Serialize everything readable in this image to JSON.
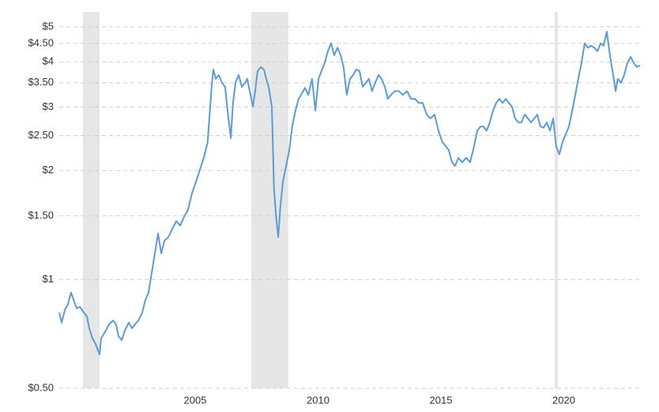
{
  "chart_data": {
    "type": "line",
    "log_scale": true,
    "grid": true,
    "color": "#5b9bd8",
    "shade_color": "#e6e6e6",
    "xlim": [
      1999.47,
      2023.2
    ],
    "ylim": [
      0.5,
      5.5
    ],
    "xticks": [
      2005,
      2010,
      2015,
      2020
    ],
    "yticks": [
      {
        "value": 0.5,
        "label": "$0.50"
      },
      {
        "value": 1,
        "label": "$1"
      },
      {
        "value": 1.5,
        "label": "$1.50"
      },
      {
        "value": 2,
        "label": "$2"
      },
      {
        "value": 2.5,
        "label": "$2.50"
      },
      {
        "value": 3,
        "label": "$3"
      },
      {
        "value": 3.5,
        "label": "$3.50"
      },
      {
        "value": 4,
        "label": "$4"
      },
      {
        "value": 4.5,
        "label": "$4.50"
      },
      {
        "value": 5,
        "label": "$5"
      }
    ],
    "shaded_ranges": [
      [
        2000.43,
        2001.11
      ],
      [
        2007.28,
        2008.79
      ],
      [
        2019.63,
        2019.76
      ]
    ],
    "x": [
      1999.47,
      1999.57,
      1999.7,
      1999.82,
      1999.95,
      2000.05,
      2000.18,
      2000.31,
      2000.47,
      2000.6,
      2000.69,
      2000.82,
      2000.95,
      2001.11,
      2001.17,
      2001.33,
      2001.5,
      2001.66,
      2001.78,
      2001.88,
      2002.01,
      2002.14,
      2002.3,
      2002.43,
      2002.56,
      2002.69,
      2002.85,
      2002.97,
      2003.1,
      2003.23,
      2003.36,
      2003.49,
      2003.62,
      2003.75,
      2003.91,
      2004.07,
      2004.23,
      2004.39,
      2004.55,
      2004.71,
      2004.87,
      2005.03,
      2005.19,
      2005.35,
      2005.51,
      2005.67,
      2005.74,
      2005.84,
      2005.96,
      2006.09,
      2006.22,
      2006.32,
      2006.45,
      2006.54,
      2006.64,
      2006.77,
      2006.9,
      2007.03,
      2007.12,
      2007.25,
      2007.35,
      2007.44,
      2007.54,
      2007.67,
      2007.8,
      2007.89,
      2007.99,
      2008.12,
      2008.21,
      2008.31,
      2008.38,
      2008.47,
      2008.57,
      2008.7,
      2008.83,
      2008.95,
      2009.08,
      2009.21,
      2009.34,
      2009.47,
      2009.6,
      2009.76,
      2009.89,
      2010.02,
      2010.14,
      2010.27,
      2010.4,
      2010.53,
      2010.66,
      2010.79,
      2010.92,
      2011.04,
      2011.17,
      2011.3,
      2011.43,
      2011.56,
      2011.69,
      2011.82,
      2011.94,
      2012.07,
      2012.2,
      2012.33,
      2012.46,
      2012.59,
      2012.72,
      2012.84,
      2012.97,
      2013.13,
      2013.29,
      2013.45,
      2013.62,
      2013.78,
      2013.94,
      2014.1,
      2014.26,
      2014.42,
      2014.58,
      2014.74,
      2014.9,
      2015.06,
      2015.19,
      2015.32,
      2015.45,
      2015.58,
      2015.71,
      2015.87,
      2016.03,
      2016.19,
      2016.35,
      2016.48,
      2016.61,
      2016.73,
      2016.86,
      2016.99,
      2017.12,
      2017.25,
      2017.38,
      2017.51,
      2017.64,
      2017.76,
      2017.89,
      2018.02,
      2018.15,
      2018.28,
      2018.41,
      2018.54,
      2018.67,
      2018.8,
      2018.92,
      2019.05,
      2019.18,
      2019.31,
      2019.44,
      2019.57,
      2019.69,
      2019.82,
      2019.95,
      2020.08,
      2020.21,
      2020.34,
      2020.47,
      2020.59,
      2020.72,
      2020.85,
      2020.98,
      2021.11,
      2021.24,
      2021.37,
      2021.5,
      2021.62,
      2021.75,
      2021.88,
      2022.01,
      2022.11,
      2022.2,
      2022.33,
      2022.46,
      2022.59,
      2022.72,
      2022.85,
      2022.98,
      2023.1
    ],
    "values": [
      0.81,
      0.76,
      0.825,
      0.853,
      0.92,
      0.88,
      0.832,
      0.84,
      0.81,
      0.79,
      0.733,
      0.687,
      0.663,
      0.62,
      0.687,
      0.715,
      0.752,
      0.77,
      0.752,
      0.697,
      0.68,
      0.722,
      0.76,
      0.733,
      0.752,
      0.77,
      0.81,
      0.875,
      0.92,
      1.04,
      1.18,
      1.34,
      1.18,
      1.28,
      1.31,
      1.38,
      1.45,
      1.41,
      1.49,
      1.56,
      1.73,
      1.86,
      2.01,
      2.17,
      2.4,
      3.41,
      3.81,
      3.59,
      3.68,
      3.5,
      3.41,
      2.93,
      2.46,
      3.08,
      3.5,
      3.68,
      3.41,
      3.5,
      3.59,
      3.24,
      3.01,
      3.32,
      3.77,
      3.87,
      3.81,
      3.59,
      3.41,
      3.01,
      1.77,
      1.45,
      1.31,
      1.6,
      1.86,
      2.06,
      2.28,
      2.65,
      2.93,
      3.16,
      3.27,
      3.39,
      3.24,
      3.59,
      2.93,
      3.59,
      3.77,
      3.97,
      4.28,
      4.5,
      4.17,
      4.38,
      4.17,
      3.87,
      3.24,
      3.59,
      3.68,
      3.81,
      3.77,
      3.41,
      3.5,
      3.59,
      3.32,
      3.5,
      3.68,
      3.59,
      3.41,
      3.16,
      3.24,
      3.32,
      3.32,
      3.24,
      3.32,
      3.16,
      3.16,
      3.08,
      3.08,
      2.86,
      2.79,
      2.86,
      2.58,
      2.4,
      2.34,
      2.28,
      2.11,
      2.06,
      2.17,
      2.11,
      2.17,
      2.11,
      2.34,
      2.58,
      2.65,
      2.65,
      2.58,
      2.72,
      2.93,
      3.08,
      3.16,
      3.08,
      3.16,
      3.08,
      3.01,
      2.79,
      2.72,
      2.72,
      2.86,
      2.79,
      2.72,
      2.79,
      2.86,
      2.65,
      2.63,
      2.72,
      2.58,
      2.79,
      2.34,
      2.22,
      2.4,
      2.52,
      2.65,
      2.93,
      3.24,
      3.59,
      3.97,
      4.5,
      4.38,
      4.43,
      4.38,
      4.28,
      4.5,
      4.43,
      4.85,
      4.17,
      3.68,
      3.32,
      3.59,
      3.5,
      3.68,
      3.97,
      4.13,
      3.97,
      3.87,
      3.91
    ]
  }
}
